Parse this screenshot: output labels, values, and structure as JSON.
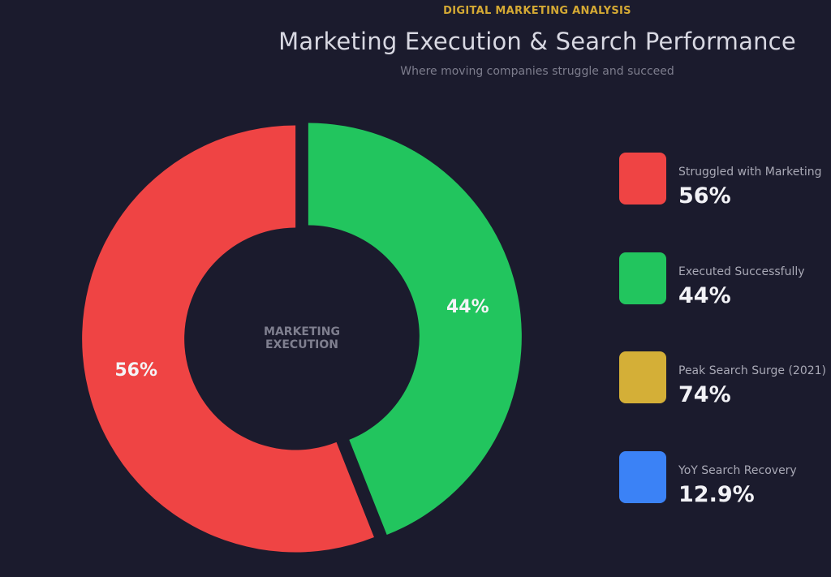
{
  "header": {
    "kicker": "DIGITAL MARKETING ANALYSIS",
    "title": "Marketing Execution & Search Performance",
    "subtitle": "Where moving companies struggle and succeed"
  },
  "chart_data": {
    "type": "pie",
    "title": "Marketing Execution & Search Performance",
    "subtitle": "Where moving companies struggle and succeed",
    "center_label": [
      "MARKETING",
      "EXECUTION"
    ],
    "slices": [
      {
        "name": "Struggled with Marketing",
        "value": 56,
        "label": "56%",
        "color": "#ef4444"
      },
      {
        "name": "Executed Successfully",
        "value": 44,
        "label": "44%",
        "color": "#22c55e"
      }
    ],
    "legend_position": "right"
  },
  "legend": {
    "items": [
      {
        "label": "Struggled with Marketing",
        "value": "56%",
        "color": "#ef4444"
      },
      {
        "label": "Executed Successfully",
        "value": "44%",
        "color": "#22c55e"
      },
      {
        "label": "Peak Search Surge (2021)",
        "value": "74%",
        "color": "#d4af37"
      },
      {
        "label": "YoY Search Recovery",
        "value": "12.9%",
        "color": "#3b82f6"
      }
    ]
  },
  "colors": {
    "background": "#1b1b2d",
    "accent": "#d4a934"
  }
}
